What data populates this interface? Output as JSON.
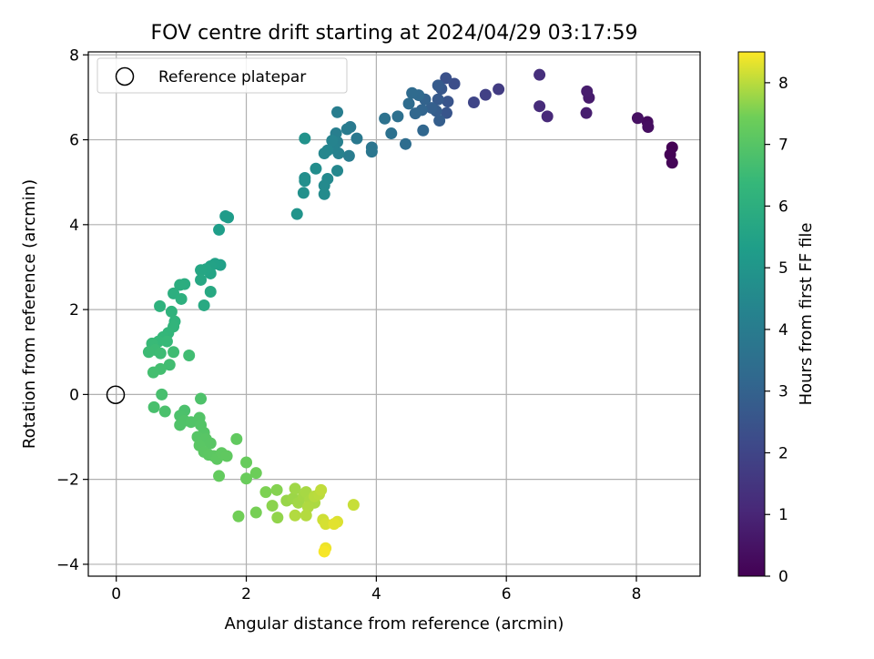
{
  "chart_data": {
    "type": "scatter",
    "title": "FOV centre drift starting at 2024/04/29 03:17:59",
    "xlabel": "Angular distance from reference (arcmin)",
    "ylabel": "Rotation from reference (arcmin)",
    "xlim": [
      -0.43,
      8.98
    ],
    "ylim": [
      -4.28,
      8.07
    ],
    "xticks": [
      0,
      2,
      4,
      6,
      8
    ],
    "yticks": [
      -4,
      -2,
      0,
      2,
      4,
      6,
      8
    ],
    "grid": true,
    "legend": {
      "placement": "upper-left",
      "entries": [
        "Reference platepar"
      ]
    },
    "reference_point": {
      "x": 0,
      "y": 0,
      "marker": "hollow-circle"
    },
    "colorbar": {
      "label": "Hours from first FF file",
      "colormap": "viridis",
      "range": [
        0,
        8.5
      ],
      "ticks": [
        0,
        1,
        2,
        3,
        4,
        5,
        6,
        7,
        8
      ]
    },
    "points": [
      {
        "x": 8.55,
        "y": 5.82,
        "c": 0.0
      },
      {
        "x": 8.52,
        "y": 5.65,
        "c": 0.05
      },
      {
        "x": 8.55,
        "y": 5.46,
        "c": 0.1
      },
      {
        "x": 8.17,
        "y": 6.42,
        "c": 0.3
      },
      {
        "x": 8.18,
        "y": 6.3,
        "c": 0.35
      },
      {
        "x": 8.02,
        "y": 6.51,
        "c": 0.4
      },
      {
        "x": 7.27,
        "y": 6.99,
        "c": 0.7
      },
      {
        "x": 7.24,
        "y": 7.14,
        "c": 0.75
      },
      {
        "x": 7.23,
        "y": 6.63,
        "c": 0.8
      },
      {
        "x": 6.63,
        "y": 6.55,
        "c": 1.1
      },
      {
        "x": 6.51,
        "y": 6.79,
        "c": 1.2
      },
      {
        "x": 6.51,
        "y": 7.53,
        "c": 1.3
      },
      {
        "x": 5.88,
        "y": 7.19,
        "c": 1.7
      },
      {
        "x": 5.68,
        "y": 7.06,
        "c": 1.85
      },
      {
        "x": 5.5,
        "y": 6.88,
        "c": 2.0
      },
      {
        "x": 5.2,
        "y": 7.32,
        "c": 2.3
      },
      {
        "x": 5.07,
        "y": 7.45,
        "c": 2.4
      },
      {
        "x": 5.1,
        "y": 6.9,
        "c": 2.5
      },
      {
        "x": 5.08,
        "y": 6.63,
        "c": 2.55
      },
      {
        "x": 5.0,
        "y": 7.2,
        "c": 2.6
      },
      {
        "x": 4.95,
        "y": 6.95,
        "c": 2.7
      },
      {
        "x": 4.95,
        "y": 7.28,
        "c": 2.75
      },
      {
        "x": 4.92,
        "y": 6.68,
        "c": 2.8
      },
      {
        "x": 4.97,
        "y": 6.45,
        "c": 2.85
      },
      {
        "x": 4.85,
        "y": 6.75,
        "c": 2.9
      },
      {
        "x": 4.75,
        "y": 6.95,
        "c": 3.0
      },
      {
        "x": 4.7,
        "y": 6.7,
        "c": 3.1
      },
      {
        "x": 4.72,
        "y": 6.22,
        "c": 3.15
      },
      {
        "x": 4.6,
        "y": 6.62,
        "c": 3.2
      },
      {
        "x": 4.65,
        "y": 7.05,
        "c": 3.25
      },
      {
        "x": 4.55,
        "y": 7.1,
        "c": 3.3
      },
      {
        "x": 4.5,
        "y": 6.85,
        "c": 3.35
      },
      {
        "x": 4.45,
        "y": 5.9,
        "c": 3.4
      },
      {
        "x": 4.33,
        "y": 6.55,
        "c": 3.5
      },
      {
        "x": 4.23,
        "y": 6.15,
        "c": 3.55
      },
      {
        "x": 4.13,
        "y": 6.5,
        "c": 3.6
      },
      {
        "x": 3.93,
        "y": 5.82,
        "c": 3.7
      },
      {
        "x": 3.93,
        "y": 5.72,
        "c": 3.75
      },
      {
        "x": 3.7,
        "y": 6.03,
        "c": 3.85
      },
      {
        "x": 3.6,
        "y": 6.3,
        "c": 3.9
      },
      {
        "x": 3.55,
        "y": 6.25,
        "c": 3.95
      },
      {
        "x": 3.58,
        "y": 5.62,
        "c": 4.0
      },
      {
        "x": 3.4,
        "y": 6.65,
        "c": 4.05
      },
      {
        "x": 3.38,
        "y": 6.15,
        "c": 4.1
      },
      {
        "x": 3.4,
        "y": 5.95,
        "c": 4.15
      },
      {
        "x": 3.42,
        "y": 5.68,
        "c": 4.2
      },
      {
        "x": 3.35,
        "y": 5.8,
        "c": 4.25
      },
      {
        "x": 3.32,
        "y": 5.98,
        "c": 4.3
      },
      {
        "x": 3.25,
        "y": 5.75,
        "c": 4.35
      },
      {
        "x": 3.2,
        "y": 5.68,
        "c": 4.4
      },
      {
        "x": 3.4,
        "y": 5.27,
        "c": 4.45
      },
      {
        "x": 3.25,
        "y": 5.08,
        "c": 4.5
      },
      {
        "x": 3.2,
        "y": 4.92,
        "c": 4.55
      },
      {
        "x": 3.2,
        "y": 4.72,
        "c": 4.6
      },
      {
        "x": 3.07,
        "y": 5.32,
        "c": 4.65
      },
      {
        "x": 2.9,
        "y": 5.1,
        "c": 4.7
      },
      {
        "x": 2.9,
        "y": 5.03,
        "c": 4.75
      },
      {
        "x": 2.88,
        "y": 4.75,
        "c": 4.8
      },
      {
        "x": 2.9,
        "y": 6.03,
        "c": 4.85
      },
      {
        "x": 2.78,
        "y": 4.25,
        "c": 4.95
      },
      {
        "x": 1.68,
        "y": 4.2,
        "c": 5.2
      },
      {
        "x": 1.72,
        "y": 4.17,
        "c": 5.25
      },
      {
        "x": 1.58,
        "y": 3.88,
        "c": 5.3
      },
      {
        "x": 1.6,
        "y": 3.05,
        "c": 5.4
      },
      {
        "x": 1.52,
        "y": 3.08,
        "c": 5.45
      },
      {
        "x": 1.45,
        "y": 3.02,
        "c": 5.5
      },
      {
        "x": 1.45,
        "y": 2.85,
        "c": 5.55
      },
      {
        "x": 1.38,
        "y": 2.95,
        "c": 5.6
      },
      {
        "x": 1.3,
        "y": 2.93,
        "c": 5.65
      },
      {
        "x": 1.3,
        "y": 2.7,
        "c": 5.7
      },
      {
        "x": 1.45,
        "y": 2.42,
        "c": 5.75
      },
      {
        "x": 1.35,
        "y": 2.1,
        "c": 5.8
      },
      {
        "x": 1.05,
        "y": 2.6,
        "c": 5.9
      },
      {
        "x": 0.98,
        "y": 2.58,
        "c": 5.95
      },
      {
        "x": 0.88,
        "y": 2.38,
        "c": 6.0
      },
      {
        "x": 1.0,
        "y": 2.25,
        "c": 6.05
      },
      {
        "x": 0.67,
        "y": 2.08,
        "c": 6.1
      },
      {
        "x": 0.85,
        "y": 1.95,
        "c": 6.15
      },
      {
        "x": 0.9,
        "y": 1.72,
        "c": 6.2
      },
      {
        "x": 0.88,
        "y": 1.6,
        "c": 6.25
      },
      {
        "x": 0.8,
        "y": 1.45,
        "c": 6.3
      },
      {
        "x": 0.72,
        "y": 1.35,
        "c": 6.35
      },
      {
        "x": 0.65,
        "y": 1.25,
        "c": 6.4
      },
      {
        "x": 0.78,
        "y": 1.25,
        "c": 6.42
      },
      {
        "x": 0.55,
        "y": 1.2,
        "c": 6.45
      },
      {
        "x": 0.6,
        "y": 1.05,
        "c": 6.5
      },
      {
        "x": 0.5,
        "y": 1.0,
        "c": 6.52
      },
      {
        "x": 0.68,
        "y": 0.97,
        "c": 6.55
      },
      {
        "x": 0.88,
        "y": 1.0,
        "c": 6.58
      },
      {
        "x": 1.12,
        "y": 0.92,
        "c": 6.6
      },
      {
        "x": 0.82,
        "y": 0.7,
        "c": 6.62
      },
      {
        "x": 0.68,
        "y": 0.6,
        "c": 6.65
      },
      {
        "x": 0.57,
        "y": 0.52,
        "c": 6.68
      },
      {
        "x": 0.7,
        "y": 0.0,
        "c": 6.72
      },
      {
        "x": 0.58,
        "y": -0.3,
        "c": 6.75
      },
      {
        "x": 0.75,
        "y": -0.4,
        "c": 6.78
      },
      {
        "x": 1.05,
        "y": -0.38,
        "c": 6.8
      },
      {
        "x": 0.98,
        "y": -0.5,
        "c": 6.82
      },
      {
        "x": 1.3,
        "y": -0.1,
        "c": 6.85
      },
      {
        "x": 1.05,
        "y": -0.62,
        "c": 6.88
      },
      {
        "x": 0.98,
        "y": -0.72,
        "c": 6.9
      },
      {
        "x": 1.15,
        "y": -0.65,
        "c": 6.92
      },
      {
        "x": 1.28,
        "y": -0.55,
        "c": 6.94
      },
      {
        "x": 1.3,
        "y": -0.72,
        "c": 6.96
      },
      {
        "x": 1.35,
        "y": -0.9,
        "c": 6.98
      },
      {
        "x": 1.25,
        "y": -1.0,
        "c": 7.0
      },
      {
        "x": 1.38,
        "y": -1.05,
        "c": 7.02
      },
      {
        "x": 1.45,
        "y": -1.15,
        "c": 7.04
      },
      {
        "x": 1.28,
        "y": -1.2,
        "c": 7.06
      },
      {
        "x": 1.35,
        "y": -1.35,
        "c": 7.08
      },
      {
        "x": 1.42,
        "y": -1.42,
        "c": 7.1
      },
      {
        "x": 1.5,
        "y": -1.45,
        "c": 7.12
      },
      {
        "x": 1.55,
        "y": -1.52,
        "c": 7.14
      },
      {
        "x": 1.62,
        "y": -1.38,
        "c": 7.16
      },
      {
        "x": 1.7,
        "y": -1.45,
        "c": 7.18
      },
      {
        "x": 1.85,
        "y": -1.05,
        "c": 7.2
      },
      {
        "x": 1.58,
        "y": -1.92,
        "c": 7.24
      },
      {
        "x": 2.0,
        "y": -1.6,
        "c": 7.3
      },
      {
        "x": 2.0,
        "y": -1.98,
        "c": 7.35
      },
      {
        "x": 2.15,
        "y": -1.85,
        "c": 7.4
      },
      {
        "x": 1.88,
        "y": -2.87,
        "c": 7.45
      },
      {
        "x": 2.15,
        "y": -2.78,
        "c": 7.5
      },
      {
        "x": 2.3,
        "y": -2.3,
        "c": 7.55
      },
      {
        "x": 2.47,
        "y": -2.25,
        "c": 7.6
      },
      {
        "x": 2.4,
        "y": -2.62,
        "c": 7.65
      },
      {
        "x": 2.48,
        "y": -2.9,
        "c": 7.7
      },
      {
        "x": 2.62,
        "y": -2.5,
        "c": 7.75
      },
      {
        "x": 2.72,
        "y": -2.45,
        "c": 7.78
      },
      {
        "x": 2.75,
        "y": -2.22,
        "c": 7.8
      },
      {
        "x": 2.8,
        "y": -2.55,
        "c": 7.82
      },
      {
        "x": 2.88,
        "y": -2.4,
        "c": 7.84
      },
      {
        "x": 2.92,
        "y": -2.3,
        "c": 7.86
      },
      {
        "x": 2.98,
        "y": -2.5,
        "c": 7.88
      },
      {
        "x": 3.05,
        "y": -2.55,
        "c": 7.9
      },
      {
        "x": 2.95,
        "y": -2.65,
        "c": 7.92
      },
      {
        "x": 2.75,
        "y": -2.85,
        "c": 7.94
      },
      {
        "x": 2.92,
        "y": -2.85,
        "c": 7.96
      },
      {
        "x": 3.05,
        "y": -2.4,
        "c": 7.98
      },
      {
        "x": 3.12,
        "y": -2.35,
        "c": 8.0
      },
      {
        "x": 3.15,
        "y": -2.25,
        "c": 8.05
      },
      {
        "x": 3.65,
        "y": -2.6,
        "c": 8.1
      },
      {
        "x": 3.18,
        "y": -2.95,
        "c": 8.15
      },
      {
        "x": 3.22,
        "y": -3.05,
        "c": 8.2
      },
      {
        "x": 3.4,
        "y": -3.0,
        "c": 8.25
      },
      {
        "x": 3.35,
        "y": -3.05,
        "c": 8.3
      },
      {
        "x": 3.22,
        "y": -3.62,
        "c": 8.38
      },
      {
        "x": 3.2,
        "y": -3.7,
        "c": 8.45
      }
    ]
  }
}
